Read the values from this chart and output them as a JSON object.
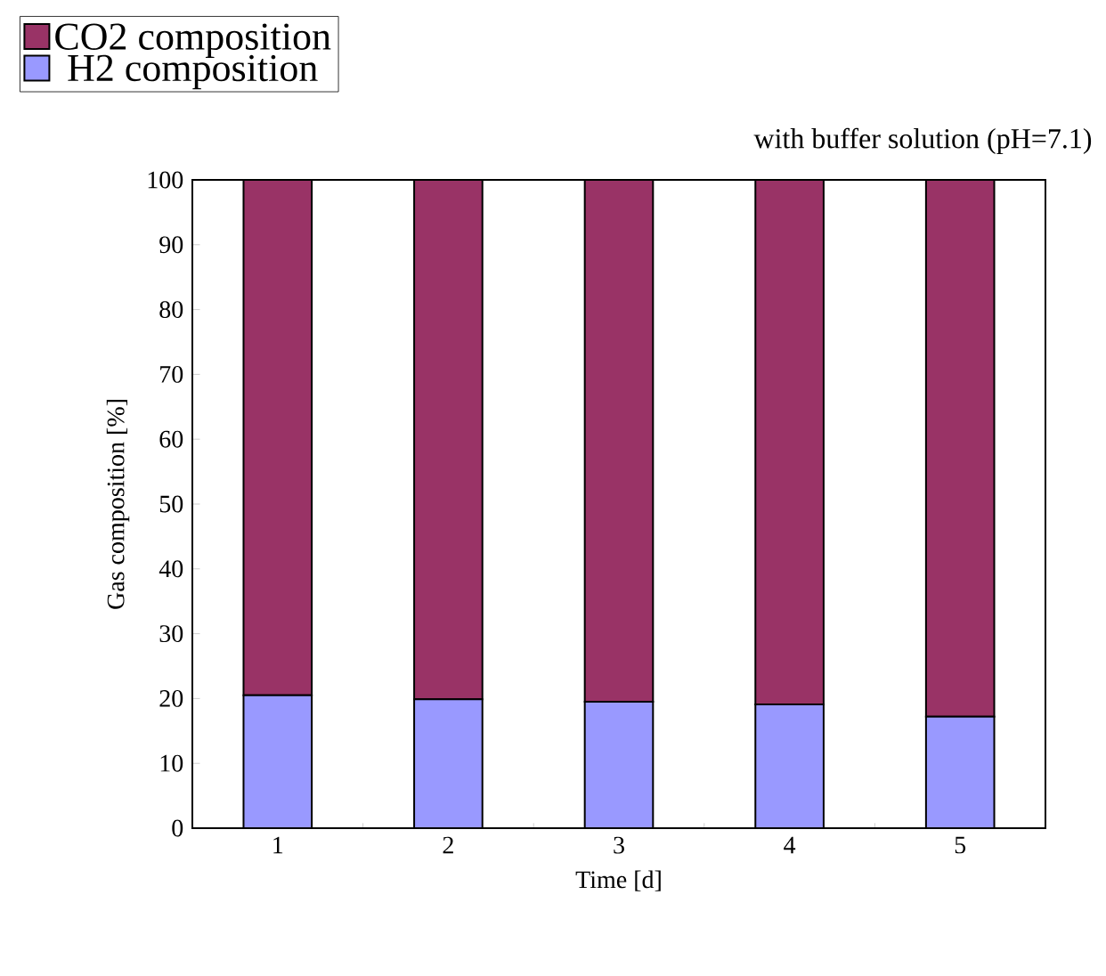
{
  "chart_data": {
    "type": "bar",
    "stacked": true,
    "title": "with buffer solution (pH=7.1)",
    "xlabel": "Time [d]",
    "ylabel": "Gas composition [%]",
    "categories": [
      "1",
      "2",
      "3",
      "4",
      "5"
    ],
    "series": [
      {
        "name": "H2 composition",
        "color": "#9999ff",
        "values": [
          20.5,
          19.9,
          19.5,
          19.1,
          17.2
        ]
      },
      {
        "name": "CO2 composition",
        "color": "#993366",
        "values": [
          79.5,
          80.1,
          80.5,
          80.9,
          82.8
        ]
      }
    ],
    "ylim": [
      0,
      100
    ],
    "yticks": [
      0,
      10,
      20,
      30,
      40,
      50,
      60,
      70,
      80,
      90,
      100
    ],
    "grid": false,
    "legend": "top left"
  }
}
